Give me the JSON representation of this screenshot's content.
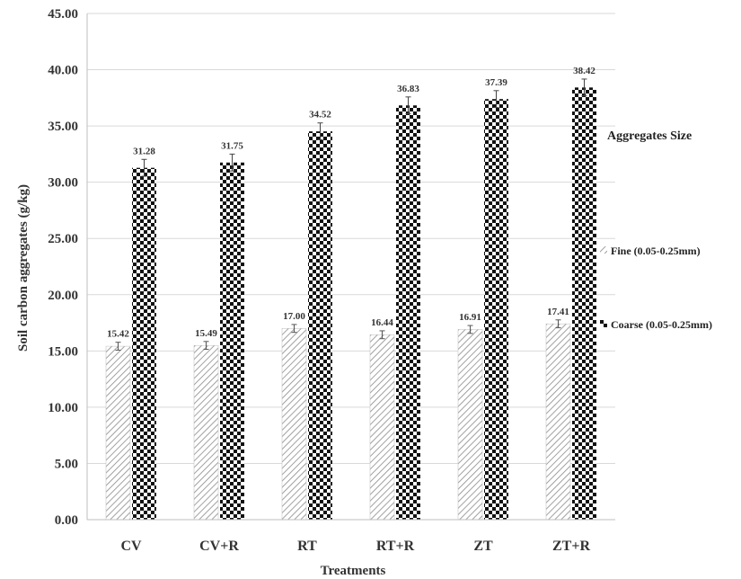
{
  "chart_data": {
    "type": "bar",
    "categories": [
      "CV",
      "CV+R",
      "RT",
      "RT+R",
      "ZT",
      "ZT+R"
    ],
    "series": [
      {
        "name": "Fine (0.05-0.25mm)",
        "values": [
          15.42,
          15.49,
          17.0,
          16.44,
          16.91,
          17.41
        ],
        "labels": [
          "15.42",
          "15.49",
          "17.00",
          "16.44",
          "16.91",
          "17.41"
        ],
        "error": 0.35,
        "pattern": "diagonal-hatch"
      },
      {
        "name": "Coarse (0.05-0.25mm)",
        "values": [
          31.28,
          31.75,
          34.52,
          36.83,
          37.39,
          38.42
        ],
        "labels": [
          "31.28",
          "31.75",
          "34.52",
          "36.83",
          "37.39",
          "38.42"
        ],
        "error": 0.75,
        "pattern": "checkerboard"
      }
    ],
    "title": "",
    "xlabel": "Treatments",
    "ylabel": "Soil carbon aggregates (g/kg)",
    "ylim": [
      0,
      45
    ],
    "yticks": [
      "0.00",
      "5.00",
      "10.00",
      "15.00",
      "20.00",
      "25.00",
      "30.00",
      "35.00",
      "40.00",
      "45.00"
    ],
    "legend_title": "Aggregates Size",
    "legend_position": "right",
    "grid": true,
    "colors": {
      "grid": "#d9d9d9",
      "bar_dark": "#111111",
      "hatch": "#888888",
      "text": "#333333"
    }
  }
}
